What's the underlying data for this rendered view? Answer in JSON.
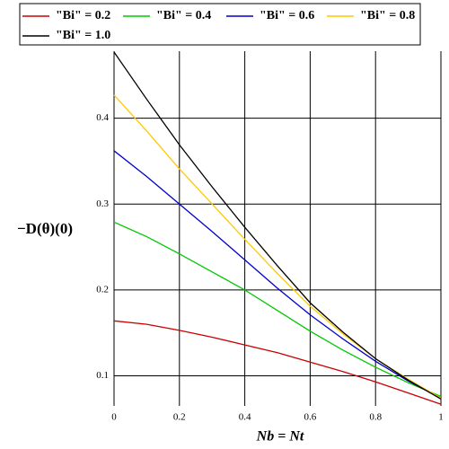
{
  "chart_data": {
    "type": "line",
    "xlabel": "Nb = Nt",
    "ylabel": "−D(θ)(0)",
    "x": [
      0,
      0.1,
      0.2,
      0.3,
      0.4,
      0.5,
      0.6,
      0.7,
      0.8,
      0.9,
      1.0
    ],
    "series": [
      {
        "name": "\"Bi\" = 0.2",
        "color": "#c80000",
        "values": [
          0.164,
          0.16,
          0.153,
          0.145,
          0.136,
          0.127,
          0.116,
          0.105,
          0.093,
          0.08,
          0.067
        ]
      },
      {
        "name": "\"Bi\" = 0.4",
        "color": "#00c800",
        "values": [
          0.279,
          0.262,
          0.242,
          0.221,
          0.2,
          0.176,
          0.152,
          0.13,
          0.11,
          0.092,
          0.076
        ]
      },
      {
        "name": "\"Bi\" = 0.6",
        "color": "#0000c8",
        "values": [
          0.362,
          0.332,
          0.3,
          0.268,
          0.235,
          0.202,
          0.171,
          0.143,
          0.117,
          0.094,
          0.074
        ]
      },
      {
        "name": "\"Bi\" = 0.8",
        "color": "#ffc800",
        "values": [
          0.427,
          0.385,
          0.341,
          0.3,
          0.259,
          0.219,
          0.181,
          0.149,
          0.12,
          0.096,
          0.074
        ]
      },
      {
        "name": "\"Bi\" = 1.0",
        "color": "#000000",
        "values": [
          0.477,
          0.422,
          0.369,
          0.32,
          0.273,
          0.228,
          0.185,
          0.151,
          0.12,
          0.095,
          0.073
        ]
      }
    ],
    "xlim": [
      0,
      1
    ],
    "ylim": [
      0.065,
      0.478
    ],
    "xticks": [
      0,
      0.2,
      0.4,
      0.6,
      0.8,
      1
    ],
    "yticks": [
      0.1,
      0.2,
      0.3,
      0.4
    ],
    "grid": true,
    "legend": "top"
  }
}
